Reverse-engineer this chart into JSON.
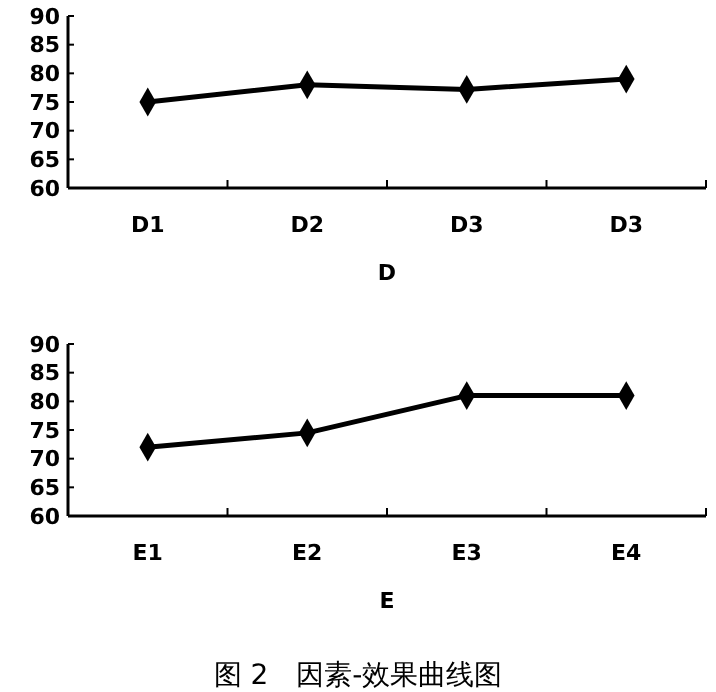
{
  "chart_data": [
    {
      "type": "line",
      "xlabel": "D",
      "categories": [
        "D1",
        "D2",
        "D3",
        "D3"
      ],
      "series": [
        {
          "color": "#000000",
          "values": [
            75,
            78,
            77.2,
            79
          ]
        }
      ],
      "ylim": [
        60,
        90
      ],
      "yticks": [
        60,
        65,
        70,
        75,
        80,
        85,
        90
      ],
      "marker": "diamond",
      "line_style": "solid",
      "grid": false
    },
    {
      "type": "line",
      "xlabel": "E",
      "categories": [
        "E1",
        "E2",
        "E3",
        "E4"
      ],
      "series": [
        {
          "color": "#000000",
          "values": [
            72,
            74.5,
            81,
            81
          ]
        }
      ],
      "ylim": [
        60,
        90
      ],
      "yticks": [
        60,
        65,
        70,
        75,
        80,
        85,
        90
      ],
      "marker": "diamond",
      "line_style": "solid",
      "grid": false,
      "annotations": [
        "图 2　因素-效果曲线图"
      ]
    }
  ]
}
